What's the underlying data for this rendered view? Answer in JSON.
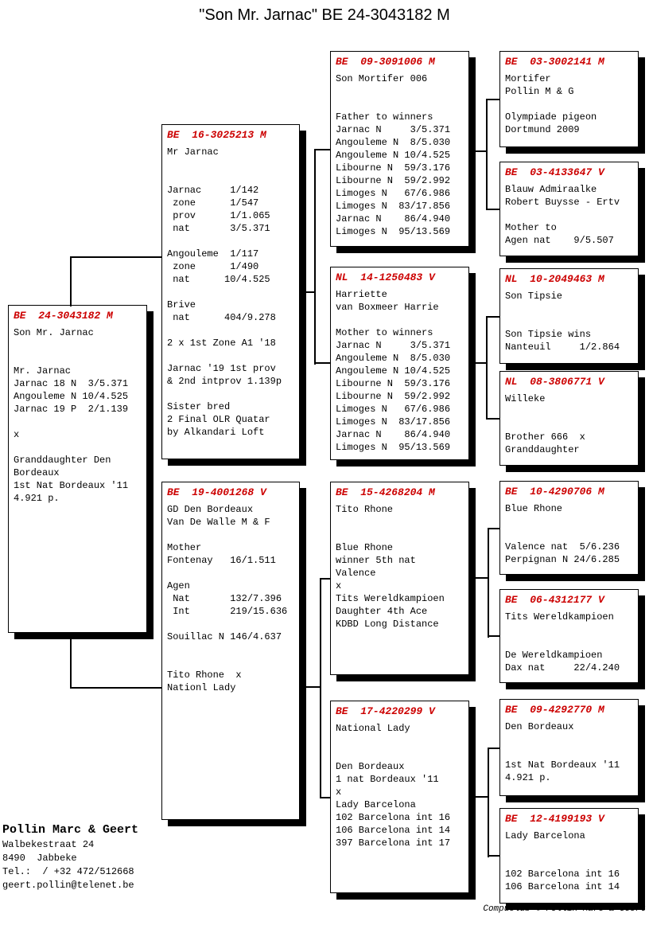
{
  "title": "\"Son Mr. Jarnac\"  BE  24-3043182 M",
  "colors": {
    "ring_red": "#cc0000",
    "line_black": "#000000"
  },
  "boxes": [
    {
      "header": "BE  24-3043182 M",
      "text": "Son Mr. Jarnac\n\n\nMr. Jarnac\nJarnac 18 N  3/5.371\nAngouleme N 10/4.525\nJarnac 19 P  2/1.139\n\nx\n\nGranddaughter Den\nBordeaux\n1st Nat Bordeaux '11\n4.921 p."
    },
    {
      "header": "BE  16-3025213 M",
      "text": "Mr Jarnac\n\n\nJarnac     1/142\n zone      1/547\n prov      1/1.065\n nat       3/5.371\n\nAngouleme  1/117\n zone      1/490\n nat      10/4.525\n\nBrive\n nat      404/9.278\n\n2 x 1st Zone A1 '18\n\nJarnac '19 1st prov\n& 2nd intprov 1.139p\n\nSister bred\n2 Final OLR Quatar\nby Alkandari Loft"
    },
    {
      "header": "BE  19-4001268 V",
      "text": "GD Den Bordeaux\nVan De Walle M & F\n\nMother\nFontenay   16/1.511\n\nAgen\n Nat       132/7.396\n Int       219/15.636\n\nSouillac N 146/4.637\n\n\nTito Rhone  x\nNationl Lady"
    },
    {
      "header": "BE  09-3091006 M",
      "text": "Son Mortifer 006\n\n\nFather to winners\nJarnac N     3/5.371\nAngouleme N  8/5.030\nAngouleme N 10/4.525\nLibourne N  59/3.176\nLibourne N  59/2.992\nLimoges N   67/6.986\nLimoges N  83/17.856\nJarnac N    86/4.940\nLimoges N  95/13.569"
    },
    {
      "header": "NL  14-1250483 V",
      "text": "Harriette\nvan Boxmeer Harrie\n\nMother to winners\nJarnac N     3/5.371\nAngouleme N  8/5.030\nAngouleme N 10/4.525\nLibourne N  59/3.176\nLibourne N  59/2.992\nLimoges N   67/6.986\nLimoges N  83/17.856\nJarnac N    86/4.940\nLimoges N  95/13.569"
    },
    {
      "header": "BE  15-4268204 M",
      "text": "Tito Rhone\n\n\nBlue Rhone\nwinner 5th nat\nValence\nx\nTits Wereldkampioen\nDaughter 4th Ace\nKDBD Long Distance"
    },
    {
      "header": "BE  17-4220299 V",
      "text": "National Lady\n\n\nDen Bordeaux\n1 nat Bordeaux '11\nx\nLady Barcelona\n102 Barcelona int 16\n106 Barcelona int 14\n397 Barcelona int 17"
    },
    {
      "header": "BE  03-3002141 M",
      "text": "Mortifer\nPollin M & G\n\nOlympiade pigeon\nDortmund 2009"
    },
    {
      "header": "BE  03-4133647 V",
      "text": "Blauw Admiraalke\nRobert Buysse - Ertv\n\nMother to\nAgen nat    9/5.507"
    },
    {
      "header": "NL  10-2049463 M",
      "text": "Son Tipsie\n\n\nSon Tipsie wins\nNanteuil     1/2.864"
    },
    {
      "header": "NL  08-3806771 V",
      "text": "Willeke\n\n\nBrother 666  x\nGranddaughter"
    },
    {
      "header": "BE  10-4290706 M",
      "text": "Blue Rhone\n\n\nValence nat  5/6.236\nPerpignan N 24/6.285"
    },
    {
      "header": "BE  06-4312177 V",
      "text": "Tits Wereldkampioen\n\n\nDe Wereldkampioen\nDax nat     22/4.240"
    },
    {
      "header": "BE  09-4292770 M",
      "text": "Den Bordeaux\n\n\n1st Nat Bordeaux '11\n4.921 p."
    },
    {
      "header": "BE  12-4199193 V",
      "text": "Lady Barcelona\n\n\n102 Barcelona int 16\n106 Barcelona int 14"
    }
  ],
  "loft": {
    "name": "Pollin Marc & Geert",
    "address": "Walbekestraat 24\n8490  Jabbeke\nTel.:  / +32 472/512668\ngeert.pollin@telenet.be"
  },
  "credit": "Compuclub © Pollin Marc & Geert"
}
